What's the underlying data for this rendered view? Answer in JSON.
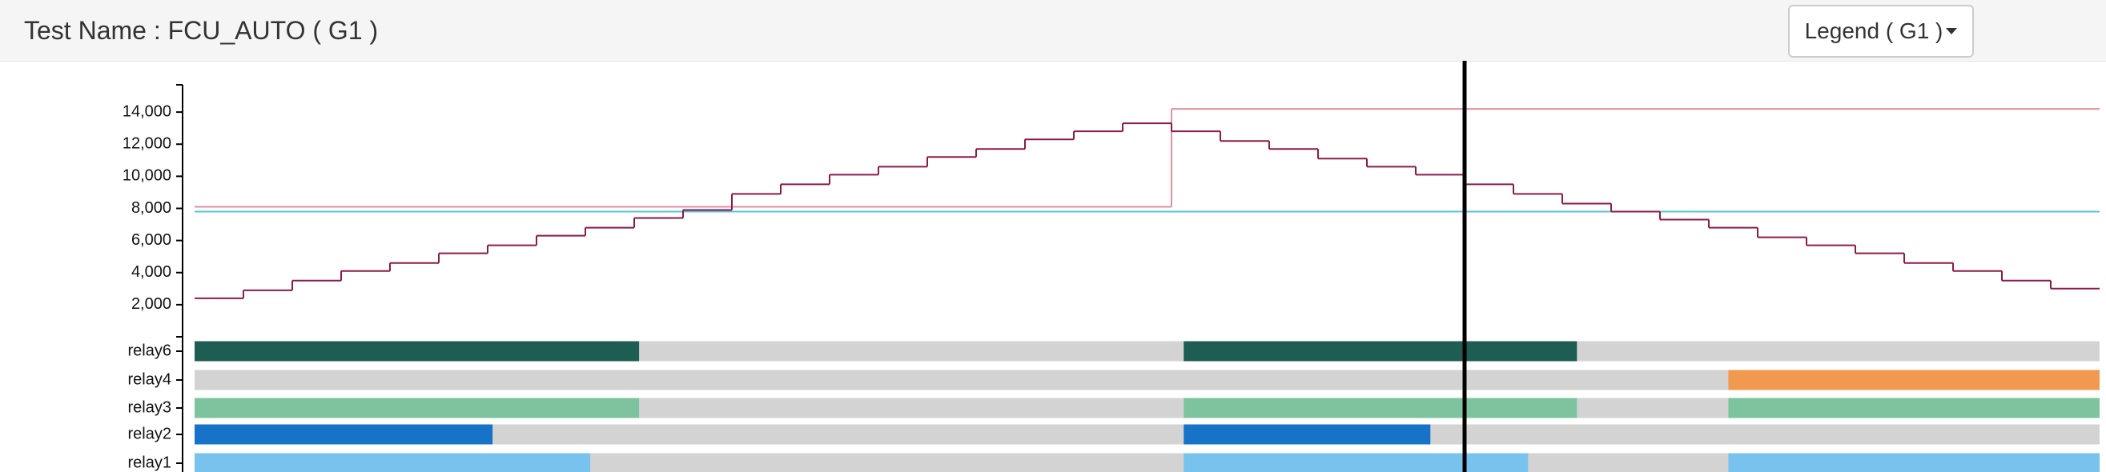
{
  "header": {
    "title": "Test Name : FCU_AUTO ( G1 )",
    "legend_button": "Legend ( G1 )"
  },
  "chart_data": {
    "type": "step",
    "ylim": [
      0,
      15700
    ],
    "yticks": [
      {
        "value": 2000,
        "label": "2,000"
      },
      {
        "value": 4000,
        "label": "4,000"
      },
      {
        "value": 6000,
        "label": "6,000"
      },
      {
        "value": 8000,
        "label": "8,000"
      },
      {
        "value": 10000,
        "label": "10,000"
      },
      {
        "value": 12000,
        "label": "12,000"
      },
      {
        "value": 14000,
        "label": "14,000"
      }
    ],
    "series": [
      {
        "color": "#e0909f",
        "values": [
          8100,
          8100,
          8100,
          8100,
          8100,
          8100,
          8100,
          8100,
          8100,
          8100,
          8100,
          8100,
          8100,
          8100,
          8100,
          8100,
          8100,
          8100,
          8100,
          8100,
          14200,
          14200,
          14200,
          14200,
          14200,
          14200,
          14200,
          14200,
          14200,
          14200,
          14200,
          14200,
          14200,
          14200,
          14200,
          14200,
          14200,
          14200,
          14200
        ]
      },
      {
        "color": "#5bc0de",
        "values": [
          7800,
          7800,
          7800,
          7800,
          7800,
          7800,
          7800,
          7800,
          7800,
          7800,
          7800,
          7800,
          7800,
          7800,
          7800,
          7800,
          7800,
          7800,
          7800,
          7800,
          7800,
          7800,
          7800,
          7800,
          7800,
          7800,
          7800,
          7800,
          7800,
          7800,
          7800,
          7800,
          7800,
          7800,
          7800,
          7800,
          7800,
          7800,
          7800
        ]
      },
      {
        "color": "#8b1a4a",
        "values": [
          2400,
          2900,
          3500,
          4100,
          4600,
          5200,
          5700,
          6300,
          6800,
          7400,
          7900,
          8900,
          9500,
          10100,
          10600,
          11200,
          11700,
          12300,
          12800,
          13300,
          12800,
          12200,
          11700,
          11100,
          10600,
          10100,
          9500,
          8900,
          8300,
          7800,
          7300,
          6800,
          6200,
          5700,
          5200,
          4600,
          4100,
          3500,
          3000
        ]
      }
    ],
    "relays": [
      {
        "name": "relay6",
        "color": "#1e5e52",
        "intervals": [
          [
            0,
            9.1
          ],
          [
            20.25,
            28.3
          ]
        ]
      },
      {
        "name": "relay4",
        "color": "#f0994f",
        "intervals": [
          [
            31.4,
            39
          ]
        ]
      },
      {
        "name": "relay3",
        "color": "#7dc49e",
        "intervals": [
          [
            0,
            9.1
          ],
          [
            20.25,
            28.3
          ],
          [
            31.4,
            39
          ]
        ]
      },
      {
        "name": "relay2",
        "color": "#1673c8",
        "intervals": [
          [
            0,
            6.1
          ],
          [
            20.25,
            25.3
          ]
        ]
      },
      {
        "name": "relay1",
        "color": "#78c3ee",
        "intervals": [
          [
            0,
            8.1
          ],
          [
            20.25,
            27.3
          ],
          [
            31.4,
            39
          ]
        ]
      }
    ],
    "cursor": 26.0
  }
}
